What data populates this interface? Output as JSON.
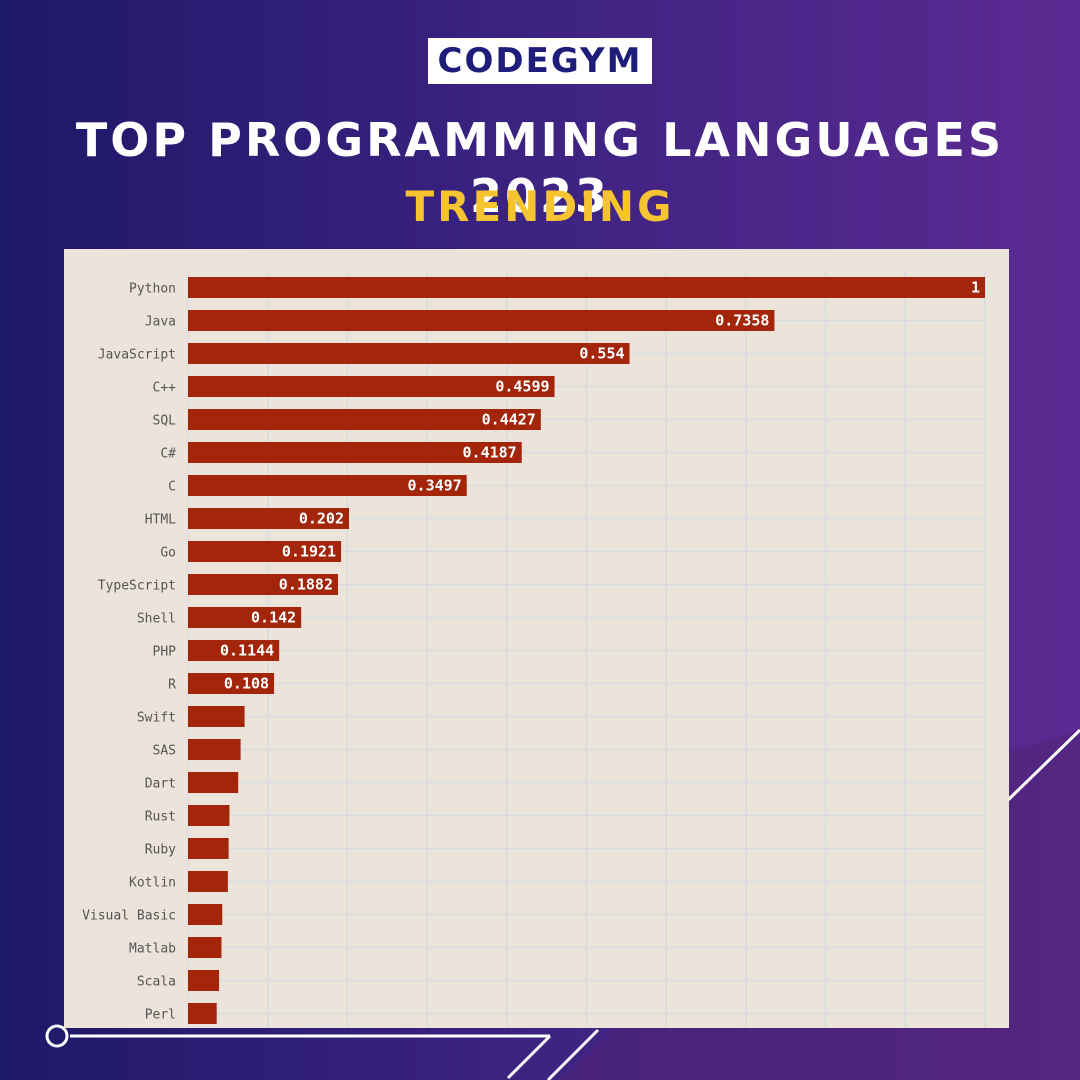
{
  "header": {
    "logo_text": "CODEGYM",
    "title": "TOP PROGRAMMING LANGUAGES 2023",
    "subtitle": "TRENDING"
  },
  "colors": {
    "bar": "#a3260b",
    "panel": "#ece4da",
    "grid": "#d7dbe1",
    "title": "#ffffff",
    "subtitle": "#f5c430",
    "logo_text": "#1f1d7a"
  },
  "chart_data": {
    "type": "bar",
    "orientation": "horizontal",
    "categories": [
      "Python",
      "Java",
      "JavaScript",
      "C++",
      "SQL",
      "C#",
      "C",
      "HTML",
      "Go",
      "TypeScript",
      "Shell",
      "PHP",
      "R",
      "Swift",
      "SAS",
      "Dart",
      "Rust",
      "Ruby",
      "Kotlin",
      "Visual Basic",
      "Matlab",
      "Scala",
      "Perl"
    ],
    "values": [
      1,
      0.7358,
      0.554,
      0.4599,
      0.4427,
      0.4187,
      0.3497,
      0.202,
      0.1921,
      0.1882,
      0.142,
      0.1144,
      0.108,
      0.071,
      0.066,
      0.063,
      0.052,
      0.051,
      0.05,
      0.043,
      0.042,
      0.039,
      0.036
    ],
    "data_labels": [
      "1",
      "0.7358",
      "0.554",
      "0.4599",
      "0.4427",
      "0.4187",
      "0.3497",
      "0.202",
      "0.1921",
      "0.1882",
      "0.142",
      "0.1144",
      "0.108",
      "",
      "",
      "",
      "",
      "",
      "",
      "",
      "",
      "",
      ""
    ],
    "xlim": [
      0,
      1
    ],
    "grid": true,
    "title": "",
    "xlabel": "",
    "ylabel": ""
  }
}
